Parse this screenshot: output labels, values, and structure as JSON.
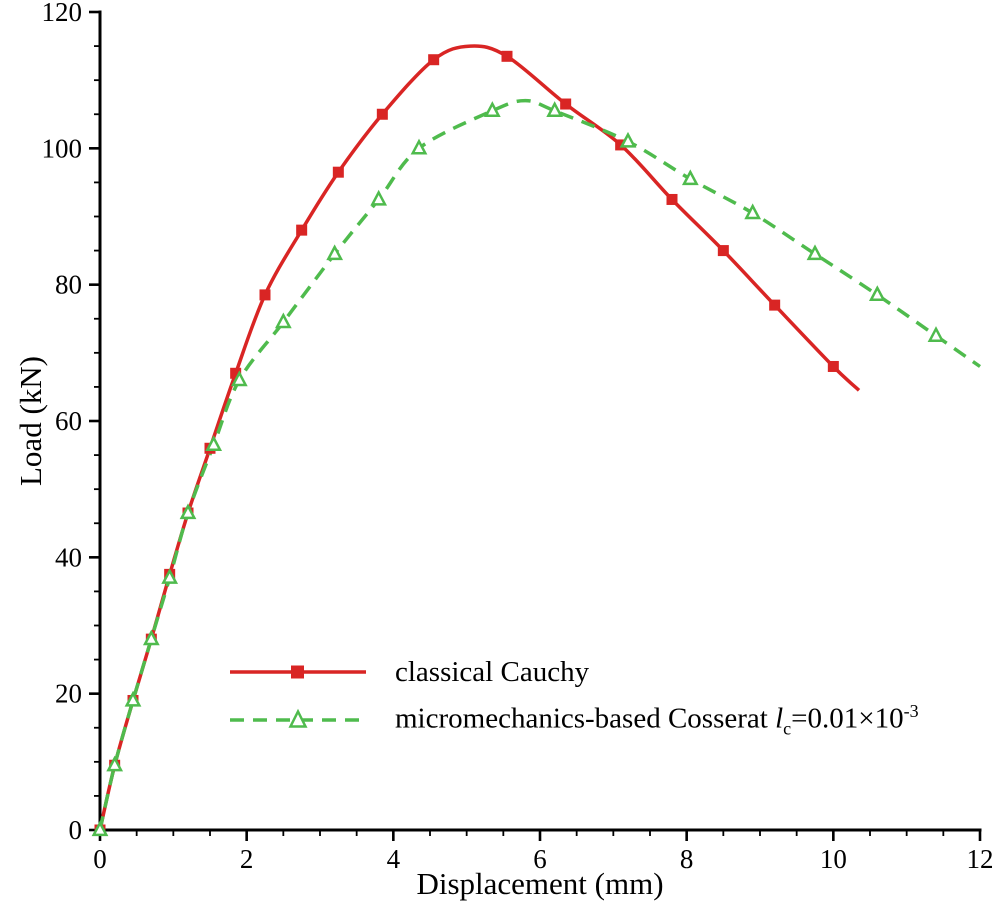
{
  "chart_data": {
    "type": "line",
    "title": "",
    "xlabel": "Displacement (mm)",
    "ylabel": "Load (kN)",
    "x_range": [
      0,
      12
    ],
    "y_range": [
      0,
      120
    ],
    "x_tick_step": 2,
    "x_minor_step": 0.5,
    "y_tick_step": 20,
    "y_minor_step": 5,
    "grid": "off",
    "axis_color": "#000000",
    "series": [
      {
        "name": "classical Cauchy",
        "color": "#d92524",
        "line_style": "solid",
        "marker": "filled-square",
        "marker_points": [
          [
            0,
            0
          ],
          [
            0.2,
            9.5
          ],
          [
            0.45,
            19
          ],
          [
            0.7,
            28
          ],
          [
            0.95,
            37.5
          ],
          [
            1.2,
            46.5
          ],
          [
            1.5,
            56
          ],
          [
            1.85,
            67
          ],
          [
            2.25,
            78.5
          ],
          [
            2.75,
            88
          ],
          [
            3.25,
            96.5
          ],
          [
            3.85,
            105
          ],
          [
            4.55,
            113
          ],
          [
            5.55,
            113.5
          ],
          [
            6.35,
            106.5
          ],
          [
            7.1,
            100.5
          ],
          [
            7.8,
            92.5
          ],
          [
            8.5,
            85
          ],
          [
            9.2,
            77
          ],
          [
            10.0,
            68
          ]
        ],
        "line_points": [
          [
            0,
            0
          ],
          [
            0.2,
            9.5
          ],
          [
            0.45,
            19
          ],
          [
            0.7,
            28
          ],
          [
            0.95,
            37.5
          ],
          [
            1.2,
            46.5
          ],
          [
            1.5,
            56
          ],
          [
            1.85,
            67
          ],
          [
            2.25,
            78.5
          ],
          [
            2.75,
            88
          ],
          [
            3.25,
            96.5
          ],
          [
            3.85,
            105
          ],
          [
            4.55,
            113
          ],
          [
            5.05,
            115
          ],
          [
            5.55,
            113.5
          ],
          [
            6.35,
            106.5
          ],
          [
            7.1,
            100.5
          ],
          [
            7.8,
            92.5
          ],
          [
            8.5,
            85
          ],
          [
            9.2,
            77
          ],
          [
            10.0,
            68
          ],
          [
            10.35,
            64.5
          ]
        ]
      },
      {
        "name": "micromechanics-based Cosserat lc=0.01x10^-3",
        "color": "#4fbb4d",
        "line_style": "dashed",
        "marker": "open-triangle",
        "marker_points": [
          [
            0,
            0
          ],
          [
            0.2,
            9.5
          ],
          [
            0.45,
            19
          ],
          [
            0.7,
            28
          ],
          [
            0.95,
            37
          ],
          [
            1.2,
            46.5
          ],
          [
            1.55,
            56.5
          ],
          [
            1.9,
            66
          ],
          [
            2.5,
            74.5
          ],
          [
            3.2,
            84.5
          ],
          [
            3.8,
            92.5
          ],
          [
            4.35,
            100
          ],
          [
            5.35,
            105.5
          ],
          [
            6.2,
            105.5
          ],
          [
            7.2,
            101
          ],
          [
            8.05,
            95.5
          ],
          [
            8.9,
            90.5
          ],
          [
            9.75,
            84.5
          ],
          [
            10.6,
            78.5
          ],
          [
            11.4,
            72.5
          ]
        ],
        "line_points": [
          [
            0,
            0
          ],
          [
            0.2,
            9.5
          ],
          [
            0.45,
            19
          ],
          [
            0.7,
            28
          ],
          [
            0.95,
            37
          ],
          [
            1.2,
            46.5
          ],
          [
            1.55,
            56.5
          ],
          [
            1.9,
            66
          ],
          [
            2.5,
            74.5
          ],
          [
            3.2,
            84.5
          ],
          [
            3.8,
            92.5
          ],
          [
            4.35,
            100
          ],
          [
            5.35,
            105.5
          ],
          [
            5.8,
            107
          ],
          [
            6.2,
            105.5
          ],
          [
            7.2,
            101
          ],
          [
            8.05,
            95.5
          ],
          [
            8.9,
            90.5
          ],
          [
            9.75,
            84.5
          ],
          [
            10.6,
            78.5
          ],
          [
            11.4,
            72.5
          ],
          [
            12.0,
            68
          ]
        ]
      }
    ],
    "legend": {
      "position": "inside-lower-left",
      "items": [
        {
          "series": 0,
          "label_text": "classical Cauchy",
          "label_parts": [
            {
              "t": "classical Cauchy"
            }
          ]
        },
        {
          "series": 1,
          "label_text": "micromechanics-based Cosserat l_c=0.01×10^-3",
          "label_parts": [
            {
              "t": "micromechanics-based Cosserat "
            },
            {
              "t": "l",
              "style": "italic"
            },
            {
              "t": "c",
              "style": "sub"
            },
            {
              "t": "=0.01×10"
            },
            {
              "t": "-3",
              "style": "sup"
            }
          ]
        }
      ]
    },
    "x_tick_labels": [
      "0",
      "2",
      "4",
      "6",
      "8",
      "10",
      "12"
    ],
    "y_tick_labels": [
      "0",
      "20",
      "40",
      "60",
      "80",
      "100",
      "120"
    ]
  }
}
